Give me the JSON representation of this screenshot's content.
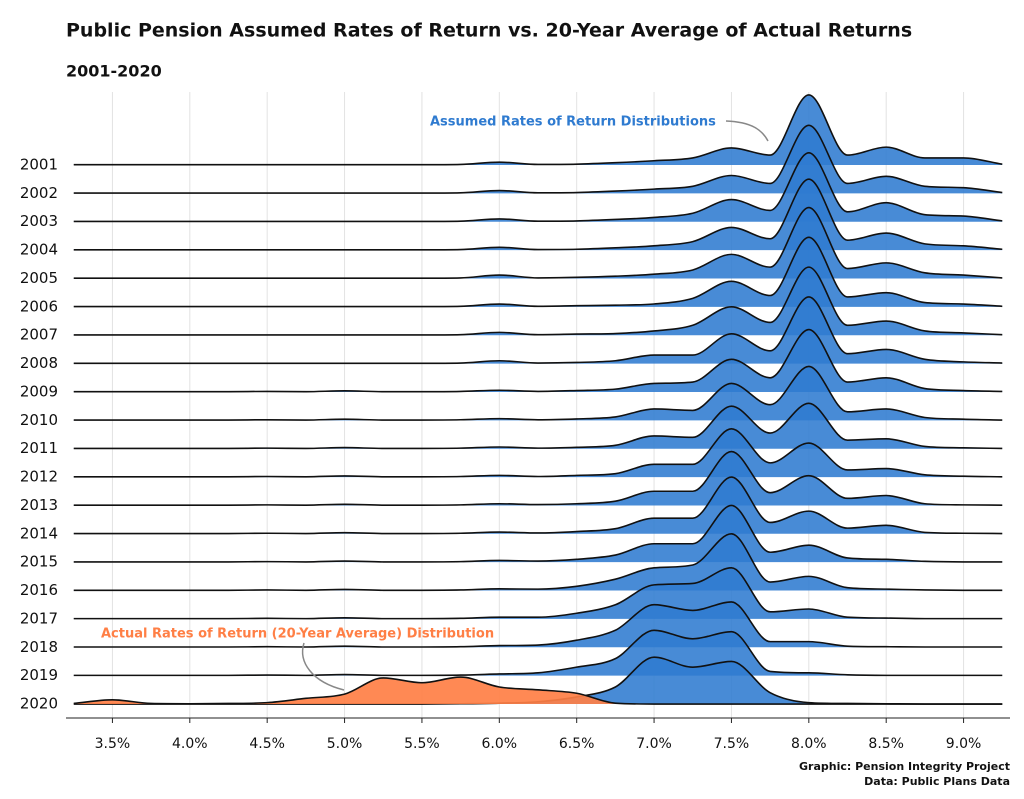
{
  "chart_data": {
    "type": "ridgeline",
    "title": "Public Pension Assumed Rates of Return vs. 20-Year Average of Actual Returns",
    "subtitle": "2001-2020",
    "categories": [
      "2001",
      "2002",
      "2003",
      "2004",
      "2005",
      "2006",
      "2007",
      "2008",
      "2009",
      "2010",
      "2011",
      "2012",
      "2013",
      "2014",
      "2015",
      "2016",
      "2017",
      "2018",
      "2019",
      "2020"
    ],
    "x": [
      3.25,
      3.5,
      3.75,
      4.0,
      4.25,
      4.5,
      4.75,
      5.0,
      5.25,
      5.5,
      5.75,
      6.0,
      6.25,
      6.5,
      6.75,
      7.0,
      7.25,
      7.5,
      7.75,
      8.0,
      8.25,
      8.5,
      8.75,
      9.0,
      9.25
    ],
    "xlim": [
      3.2,
      9.3
    ],
    "xticks": [
      {
        "value": 3.5,
        "label": "3.5%"
      },
      {
        "value": 4.0,
        "label": "4.0%"
      },
      {
        "value": 4.5,
        "label": "4.5%"
      },
      {
        "value": 5.0,
        "label": "5.0%"
      },
      {
        "value": 5.5,
        "label": "5.5%"
      },
      {
        "value": 6.0,
        "label": "6.0%"
      },
      {
        "value": 6.5,
        "label": "6.5%"
      },
      {
        "value": 7.0,
        "label": "7.0%"
      },
      {
        "value": 7.5,
        "label": "7.5%"
      },
      {
        "value": 8.0,
        "label": "8.0%"
      },
      {
        "value": 8.5,
        "label": "8.5%"
      },
      {
        "value": 9.0,
        "label": "9.0%"
      }
    ],
    "grid": true,
    "series": [
      {
        "name": "Assumed Rates of Return Distributions",
        "color": "#2f7bd0",
        "values": [
          [
            0.01,
            0.01,
            0.01,
            0.01,
            0.01,
            0.01,
            0.01,
            0.01,
            0.01,
            0.01,
            0.02,
            0.1,
            0.02,
            0.03,
            0.08,
            0.15,
            0.25,
            0.6,
            0.35,
            2.47,
            0.35,
            0.63,
            0.25,
            0.25,
            0.03
          ],
          [
            0.01,
            0.01,
            0.01,
            0.01,
            0.01,
            0.01,
            0.01,
            0.01,
            0.01,
            0.01,
            0.02,
            0.1,
            0.02,
            0.03,
            0.08,
            0.15,
            0.25,
            0.63,
            0.35,
            2.4,
            0.35,
            0.6,
            0.25,
            0.2,
            0.03
          ],
          [
            0.01,
            0.01,
            0.01,
            0.01,
            0.01,
            0.01,
            0.01,
            0.01,
            0.01,
            0.01,
            0.02,
            0.1,
            0.02,
            0.03,
            0.08,
            0.15,
            0.3,
            0.78,
            0.4,
            2.43,
            0.35,
            0.67,
            0.25,
            0.2,
            0.03
          ],
          [
            0.01,
            0.01,
            0.01,
            0.01,
            0.01,
            0.01,
            0.01,
            0.01,
            0.01,
            0.01,
            0.02,
            0.1,
            0.02,
            0.03,
            0.08,
            0.15,
            0.3,
            0.8,
            0.4,
            2.5,
            0.35,
            0.6,
            0.22,
            0.15,
            0.03
          ],
          [
            0.01,
            0.01,
            0.01,
            0.01,
            0.01,
            0.01,
            0.01,
            0.01,
            0.01,
            0.01,
            0.02,
            0.12,
            0.02,
            0.04,
            0.08,
            0.15,
            0.3,
            0.85,
            0.4,
            2.5,
            0.35,
            0.55,
            0.2,
            0.12,
            0.02
          ],
          [
            0.01,
            0.01,
            0.01,
            0.01,
            0.01,
            0.01,
            0.01,
            0.01,
            0.01,
            0.01,
            0.02,
            0.1,
            0.02,
            0.04,
            0.06,
            0.1,
            0.3,
            0.9,
            0.4,
            2.45,
            0.35,
            0.5,
            0.15,
            0.1,
            0.02
          ],
          [
            0.01,
            0.01,
            0.01,
            0.01,
            0.01,
            0.01,
            0.01,
            0.01,
            0.01,
            0.01,
            0.02,
            0.1,
            0.02,
            0.04,
            0.06,
            0.15,
            0.35,
            1.0,
            0.45,
            2.4,
            0.35,
            0.5,
            0.15,
            0.08,
            0.02
          ],
          [
            0.01,
            0.01,
            0.01,
            0.01,
            0.01,
            0.01,
            0.01,
            0.01,
            0.01,
            0.01,
            0.02,
            0.1,
            0.02,
            0.04,
            0.1,
            0.3,
            0.3,
            1.05,
            0.45,
            2.35,
            0.35,
            0.5,
            0.15,
            0.06,
            0.02
          ],
          [
            0.01,
            0.01,
            0.01,
            0.01,
            0.01,
            0.02,
            0.01,
            0.04,
            0.01,
            0.01,
            0.02,
            0.06,
            0.02,
            0.05,
            0.1,
            0.3,
            0.35,
            1.15,
            0.5,
            2.2,
            0.35,
            0.5,
            0.12,
            0.05,
            0.02
          ],
          [
            0.01,
            0.01,
            0.01,
            0.01,
            0.01,
            0.02,
            0.01,
            0.04,
            0.01,
            0.01,
            0.02,
            0.06,
            0.02,
            0.05,
            0.12,
            0.4,
            0.35,
            1.3,
            0.55,
            1.9,
            0.3,
            0.4,
            0.1,
            0.04,
            0.01
          ],
          [
            0.01,
            0.01,
            0.01,
            0.01,
            0.01,
            0.02,
            0.01,
            0.04,
            0.01,
            0.01,
            0.02,
            0.06,
            0.02,
            0.05,
            0.12,
            0.45,
            0.4,
            1.5,
            0.55,
            1.6,
            0.3,
            0.35,
            0.08,
            0.03,
            0.01
          ],
          [
            0.01,
            0.01,
            0.01,
            0.01,
            0.01,
            0.02,
            0.01,
            0.04,
            0.01,
            0.01,
            0.02,
            0.06,
            0.02,
            0.06,
            0.12,
            0.45,
            0.45,
            1.7,
            0.5,
            1.2,
            0.25,
            0.3,
            0.08,
            0.03,
            0.01
          ],
          [
            0.01,
            0.01,
            0.01,
            0.01,
            0.01,
            0.02,
            0.01,
            0.04,
            0.01,
            0.01,
            0.02,
            0.06,
            0.03,
            0.06,
            0.15,
            0.5,
            0.5,
            1.9,
            0.45,
            1.05,
            0.25,
            0.35,
            0.06,
            0.02,
            0.01
          ],
          [
            0.01,
            0.01,
            0.01,
            0.01,
            0.01,
            0.02,
            0.01,
            0.04,
            0.01,
            0.01,
            0.02,
            0.06,
            0.03,
            0.08,
            0.18,
            0.55,
            0.55,
            2.0,
            0.4,
            0.8,
            0.2,
            0.3,
            0.05,
            0.02,
            0.01
          ],
          [
            0.01,
            0.01,
            0.01,
            0.01,
            0.01,
            0.02,
            0.01,
            0.04,
            0.01,
            0.01,
            0.02,
            0.06,
            0.04,
            0.1,
            0.25,
            0.65,
            0.65,
            2.0,
            0.35,
            0.6,
            0.15,
            0.1,
            0.03,
            0.01,
            0.01
          ],
          [
            0.01,
            0.01,
            0.01,
            0.01,
            0.01,
            0.02,
            0.01,
            0.04,
            0.01,
            0.01,
            0.02,
            0.06,
            0.05,
            0.15,
            0.4,
            0.8,
            0.9,
            2.0,
            0.3,
            0.5,
            0.1,
            0.05,
            0.02,
            0.01,
            0.01
          ],
          [
            0.01,
            0.01,
            0.01,
            0.01,
            0.01,
            0.02,
            0.01,
            0.04,
            0.01,
            0.01,
            0.02,
            0.06,
            0.06,
            0.2,
            0.5,
            1.2,
            1.25,
            1.8,
            0.25,
            0.35,
            0.06,
            0.03,
            0.01,
            0.01,
            0.01
          ],
          [
            0.01,
            0.01,
            0.01,
            0.01,
            0.01,
            0.02,
            0.01,
            0.04,
            0.01,
            0.01,
            0.02,
            0.06,
            0.08,
            0.25,
            0.6,
            1.5,
            1.3,
            1.6,
            0.2,
            0.2,
            0.04,
            0.02,
            0.01,
            0.01,
            0.01
          ],
          [
            0.01,
            0.01,
            0.01,
            0.01,
            0.01,
            0.02,
            0.01,
            0.04,
            0.01,
            0.01,
            0.02,
            0.06,
            0.1,
            0.3,
            0.6,
            1.6,
            1.3,
            1.55,
            0.15,
            0.1,
            0.03,
            0.01,
            0.01,
            0.01,
            0.01
          ],
          [
            0,
            0,
            0,
            0,
            0,
            0,
            0,
            0,
            0,
            0,
            0.01,
            0.03,
            0.08,
            0.25,
            0.6,
            1.65,
            1.3,
            1.5,
            0.4,
            0.05,
            0.02,
            0.01,
            0,
            0,
            0
          ]
        ]
      },
      {
        "name": "Actual Rates of Return (20-Year Average) Distribution",
        "color": "#ff7f45",
        "values": [
          null,
          null,
          null,
          null,
          null,
          null,
          null,
          null,
          null,
          null,
          null,
          null,
          null,
          null,
          null,
          null,
          null,
          null,
          null,
          [
            0.02,
            0.15,
            0.02,
            0.01,
            0.02,
            0.05,
            0.2,
            0.35,
            0.92,
            0.75,
            0.95,
            0.6,
            0.5,
            0.38,
            0.03,
            0,
            0,
            0,
            0,
            0,
            0,
            0,
            0,
            0,
            0
          ]
        ]
      }
    ],
    "credits": [
      "Graphic: Pension Integrity Project",
      "Data: Public Plans Data"
    ]
  }
}
